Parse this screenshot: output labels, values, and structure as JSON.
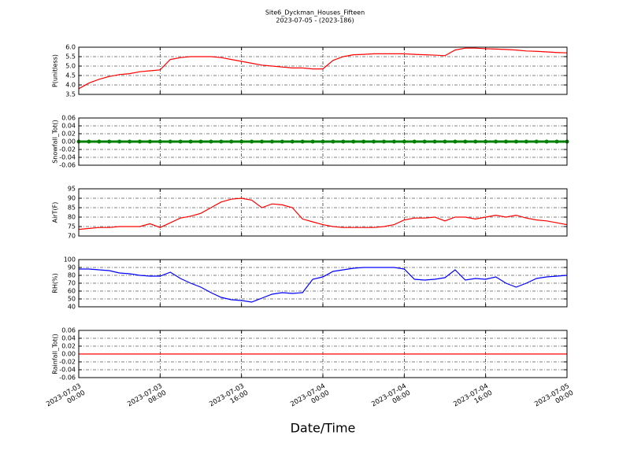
{
  "chart_data": [
    {
      "type": "line",
      "title": "Site6_Dyckman_Houses_Fifteen",
      "subtitle": "2023-07-05 - (2023-186)",
      "ylabel": "P(unitless)",
      "color": "#ff0000",
      "x": [
        "2023-07-03 00:00",
        "2023-07-03 01:00",
        "2023-07-03 02:00",
        "2023-07-03 03:00",
        "2023-07-03 04:00",
        "2023-07-03 05:00",
        "2023-07-03 06:00",
        "2023-07-03 07:00",
        "2023-07-03 08:00",
        "2023-07-03 09:00",
        "2023-07-03 10:00",
        "2023-07-03 11:00",
        "2023-07-03 12:00",
        "2023-07-03 13:00",
        "2023-07-03 14:00",
        "2023-07-03 15:00",
        "2023-07-03 16:00",
        "2023-07-03 17:00",
        "2023-07-03 18:00",
        "2023-07-03 19:00",
        "2023-07-03 20:00",
        "2023-07-03 21:00",
        "2023-07-03 22:00",
        "2023-07-03 23:00",
        "2023-07-04 00:00",
        "2023-07-04 01:00",
        "2023-07-04 02:00",
        "2023-07-04 03:00",
        "2023-07-04 04:00",
        "2023-07-04 05:00",
        "2023-07-04 06:00",
        "2023-07-04 07:00",
        "2023-07-04 08:00",
        "2023-07-04 09:00",
        "2023-07-04 10:00",
        "2023-07-04 11:00",
        "2023-07-04 12:00",
        "2023-07-04 13:00",
        "2023-07-04 14:00",
        "2023-07-04 15:00",
        "2023-07-04 16:00",
        "2023-07-04 17:00",
        "2023-07-04 18:00",
        "2023-07-04 19:00",
        "2023-07-04 20:00",
        "2023-07-04 21:00",
        "2023-07-04 22:00",
        "2023-07-04 23:00",
        "2023-07-05 00:00"
      ],
      "values": [
        3.8,
        4.1,
        4.3,
        4.45,
        4.55,
        4.6,
        4.7,
        4.75,
        4.8,
        5.35,
        5.45,
        5.5,
        5.5,
        5.5,
        5.45,
        5.35,
        5.25,
        5.15,
        5.05,
        5.0,
        4.95,
        4.9,
        4.9,
        4.85,
        4.85,
        5.3,
        5.5,
        5.6,
        5.62,
        5.65,
        5.65,
        5.65,
        5.65,
        5.62,
        5.6,
        5.58,
        5.55,
        5.85,
        5.95,
        5.95,
        5.92,
        5.9,
        5.88,
        5.85,
        5.8,
        5.78,
        5.75,
        5.72,
        5.7
      ],
      "ylim": [
        3.5,
        6.0
      ],
      "yticks": [
        3.5,
        {
          "value": 4,
          "label": "4.0"
        },
        4.5,
        {
          "value": 5,
          "label": "5.0"
        },
        5.5,
        {
          "value": 6,
          "label": "6.0"
        }
      ],
      "grid": true
    },
    {
      "type": "line",
      "ylabel": "Snowfall_Tot()",
      "color": "#008000",
      "markers": true,
      "x": [
        "2023-07-03 00:00",
        "2023-07-03 01:00",
        "2023-07-03 02:00",
        "2023-07-03 03:00",
        "2023-07-03 04:00",
        "2023-07-03 05:00",
        "2023-07-03 06:00",
        "2023-07-03 07:00",
        "2023-07-03 08:00",
        "2023-07-03 09:00",
        "2023-07-03 10:00",
        "2023-07-03 11:00",
        "2023-07-03 12:00",
        "2023-07-03 13:00",
        "2023-07-03 14:00",
        "2023-07-03 15:00",
        "2023-07-03 16:00",
        "2023-07-03 17:00",
        "2023-07-03 18:00",
        "2023-07-03 19:00",
        "2023-07-03 20:00",
        "2023-07-03 21:00",
        "2023-07-03 22:00",
        "2023-07-03 23:00",
        "2023-07-04 00:00",
        "2023-07-04 01:00",
        "2023-07-04 02:00",
        "2023-07-04 03:00",
        "2023-07-04 04:00",
        "2023-07-04 05:00",
        "2023-07-04 06:00",
        "2023-07-04 07:00",
        "2023-07-04 08:00",
        "2023-07-04 09:00",
        "2023-07-04 10:00",
        "2023-07-04 11:00",
        "2023-07-04 12:00",
        "2023-07-04 13:00",
        "2023-07-04 14:00",
        "2023-07-04 15:00",
        "2023-07-04 16:00",
        "2023-07-04 17:00",
        "2023-07-04 18:00",
        "2023-07-04 19:00",
        "2023-07-04 20:00",
        "2023-07-04 21:00",
        "2023-07-04 22:00",
        "2023-07-04 23:00",
        "2023-07-05 00:00"
      ],
      "values": [
        0,
        0,
        0,
        0,
        0,
        0,
        0,
        0,
        0,
        0,
        0,
        0,
        0,
        0,
        0,
        0,
        0,
        0,
        0,
        0,
        0,
        0,
        0,
        0,
        0,
        0,
        0,
        0,
        0,
        0,
        0,
        0,
        0,
        0,
        0,
        0,
        0,
        0,
        0,
        0,
        0,
        0,
        0,
        0,
        0,
        0,
        0,
        0,
        0
      ],
      "ylim": [
        -0.06,
        0.06
      ],
      "yticks": [
        -0.06,
        -0.04,
        -0.02,
        {
          "value": 0,
          "label": "0.00"
        },
        0.02,
        0.04,
        0.06
      ],
      "grid": true
    },
    {
      "type": "line",
      "ylabel": "AirT(F)",
      "color": "#ff0000",
      "x": [
        "2023-07-03 00:00",
        "2023-07-03 01:00",
        "2023-07-03 02:00",
        "2023-07-03 03:00",
        "2023-07-03 04:00",
        "2023-07-03 05:00",
        "2023-07-03 06:00",
        "2023-07-03 07:00",
        "2023-07-03 08:00",
        "2023-07-03 09:00",
        "2023-07-03 10:00",
        "2023-07-03 11:00",
        "2023-07-03 12:00",
        "2023-07-03 13:00",
        "2023-07-03 14:00",
        "2023-07-03 15:00",
        "2023-07-03 16:00",
        "2023-07-03 17:00",
        "2023-07-03 18:00",
        "2023-07-03 19:00",
        "2023-07-03 20:00",
        "2023-07-03 21:00",
        "2023-07-03 22:00",
        "2023-07-03 23:00",
        "2023-07-04 00:00",
        "2023-07-04 01:00",
        "2023-07-04 02:00",
        "2023-07-04 03:00",
        "2023-07-04 04:00",
        "2023-07-04 05:00",
        "2023-07-04 06:00",
        "2023-07-04 07:00",
        "2023-07-04 08:00",
        "2023-07-04 09:00",
        "2023-07-04 10:00",
        "2023-07-04 11:00",
        "2023-07-04 12:00",
        "2023-07-04 13:00",
        "2023-07-04 14:00",
        "2023-07-04 15:00",
        "2023-07-04 16:00",
        "2023-07-04 17:00",
        "2023-07-04 18:00",
        "2023-07-04 19:00",
        "2023-07-04 20:00",
        "2023-07-04 21:00",
        "2023-07-04 22:00",
        "2023-07-04 23:00",
        "2023-07-05 00:00"
      ],
      "values": [
        73.5,
        74,
        74.5,
        74.5,
        75,
        75,
        75,
        76.5,
        74.5,
        77,
        79.5,
        80.5,
        82,
        85,
        88,
        89.5,
        90,
        89,
        85,
        87,
        86.5,
        85,
        79,
        77.5,
        76,
        75,
        74.5,
        74.5,
        74.5,
        74.5,
        75,
        76,
        78.5,
        79.5,
        79.5,
        80,
        78,
        80,
        80,
        79,
        80,
        81,
        80,
        81,
        79.5,
        78.5,
        78,
        77,
        76
      ],
      "ylim": [
        70,
        95
      ],
      "yticks": [
        70,
        75,
        80,
        85,
        90,
        95
      ],
      "grid": true
    },
    {
      "type": "line",
      "ylabel": "RH(%)",
      "color": "#0000ff",
      "x": [
        "2023-07-03 00:00",
        "2023-07-03 01:00",
        "2023-07-03 02:00",
        "2023-07-03 03:00",
        "2023-07-03 04:00",
        "2023-07-03 05:00",
        "2023-07-03 06:00",
        "2023-07-03 07:00",
        "2023-07-03 08:00",
        "2023-07-03 09:00",
        "2023-07-03 10:00",
        "2023-07-03 11:00",
        "2023-07-03 12:00",
        "2023-07-03 13:00",
        "2023-07-03 14:00",
        "2023-07-03 15:00",
        "2023-07-03 16:00",
        "2023-07-03 17:00",
        "2023-07-03 18:00",
        "2023-07-03 19:00",
        "2023-07-03 20:00",
        "2023-07-03 21:00",
        "2023-07-03 22:00",
        "2023-07-03 23:00",
        "2023-07-04 00:00",
        "2023-07-04 01:00",
        "2023-07-04 02:00",
        "2023-07-04 03:00",
        "2023-07-04 04:00",
        "2023-07-04 05:00",
        "2023-07-04 06:00",
        "2023-07-04 07:00",
        "2023-07-04 08:00",
        "2023-07-04 09:00",
        "2023-07-04 10:00",
        "2023-07-04 11:00",
        "2023-07-04 12:00",
        "2023-07-04 13:00",
        "2023-07-04 14:00",
        "2023-07-04 15:00",
        "2023-07-04 16:00",
        "2023-07-04 17:00",
        "2023-07-04 18:00",
        "2023-07-04 19:00",
        "2023-07-04 20:00",
        "2023-07-04 21:00",
        "2023-07-04 22:00",
        "2023-07-04 23:00",
        "2023-07-05 00:00"
      ],
      "values": [
        88,
        88,
        87,
        86,
        83,
        82,
        80,
        79,
        79,
        84,
        76,
        70,
        65,
        58,
        52,
        49,
        48,
        46,
        51,
        56,
        58,
        57,
        58,
        75,
        78,
        85,
        87,
        89,
        90,
        90,
        90,
        90,
        88,
        75,
        74,
        75,
        77,
        87,
        74,
        76,
        75,
        78,
        70,
        65,
        70,
        76,
        78,
        79,
        80
      ],
      "ylim": [
        40,
        100
      ],
      "yticks": [
        40,
        50,
        60,
        70,
        80,
        90,
        100
      ],
      "grid": true
    },
    {
      "type": "line",
      "ylabel": "Rainfall_Tot()",
      "color": "#ff0000",
      "xlabel": "Date/Time",
      "x": [
        "2023-07-03 00:00",
        "2023-07-03 01:00",
        "2023-07-03 02:00",
        "2023-07-03 03:00",
        "2023-07-03 04:00",
        "2023-07-03 05:00",
        "2023-07-03 06:00",
        "2023-07-03 07:00",
        "2023-07-03 08:00",
        "2023-07-03 09:00",
        "2023-07-03 10:00",
        "2023-07-03 11:00",
        "2023-07-03 12:00",
        "2023-07-03 13:00",
        "2023-07-03 14:00",
        "2023-07-03 15:00",
        "2023-07-03 16:00",
        "2023-07-03 17:00",
        "2023-07-03 18:00",
        "2023-07-03 19:00",
        "2023-07-03 20:00",
        "2023-07-03 21:00",
        "2023-07-03 22:00",
        "2023-07-03 23:00",
        "2023-07-04 00:00",
        "2023-07-04 01:00",
        "2023-07-04 02:00",
        "2023-07-04 03:00",
        "2023-07-04 04:00",
        "2023-07-04 05:00",
        "2023-07-04 06:00",
        "2023-07-04 07:00",
        "2023-07-04 08:00",
        "2023-07-04 09:00",
        "2023-07-04 10:00",
        "2023-07-04 11:00",
        "2023-07-04 12:00",
        "2023-07-04 13:00",
        "2023-07-04 14:00",
        "2023-07-04 15:00",
        "2023-07-04 16:00",
        "2023-07-04 17:00",
        "2023-07-04 18:00",
        "2023-07-04 19:00",
        "2023-07-04 20:00",
        "2023-07-04 21:00",
        "2023-07-04 22:00",
        "2023-07-04 23:00",
        "2023-07-05 00:00"
      ],
      "values": [
        0,
        0,
        0,
        0,
        0,
        0,
        0,
        0,
        0,
        0,
        0,
        0,
        0,
        0,
        0,
        0,
        0,
        0,
        0,
        0,
        0,
        0,
        0,
        0,
        0,
        0,
        0,
        0,
        0,
        0,
        0,
        0,
        0,
        0,
        0,
        0,
        0,
        0,
        0,
        0,
        0,
        0,
        0,
        0,
        0,
        0,
        0,
        0,
        0
      ],
      "ylim": [
        -0.06,
        0.06
      ],
      "yticks": [
        -0.06,
        -0.04,
        -0.02,
        {
          "value": 0,
          "label": "0.00"
        },
        0.02,
        0.04,
        0.06
      ],
      "grid": true,
      "xlim": [
        "2023-07-03 00:00",
        "2023-07-05 00:00"
      ],
      "xticks": [
        "2023-07-03 00:00",
        "2023-07-03 08:00",
        "2023-07-03 16:00",
        "2023-07-04 00:00",
        "2023-07-04 08:00",
        "2023-07-04 16:00",
        "2023-07-05 00:00"
      ]
    }
  ]
}
